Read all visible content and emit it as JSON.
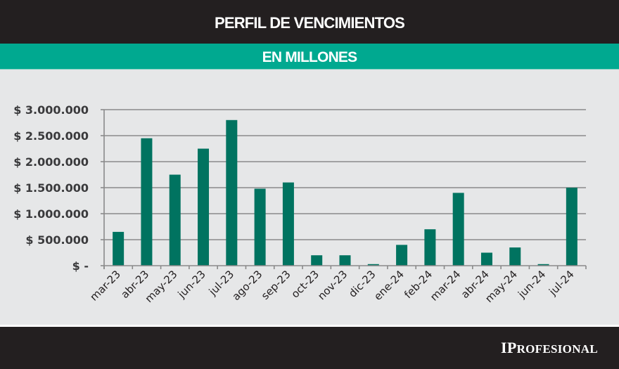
{
  "header": {
    "title": "PERFIL DE VENCIMIENTOS",
    "subtitle": "EN MILLONES"
  },
  "footer": {
    "logo_text": "IPROFESIONAL"
  },
  "colors": {
    "header_bg": "#231f20",
    "subheader_bg": "#00a990",
    "plot_bg": "#e6e7e8",
    "bar": "#007360",
    "grid": "#8a8a8a",
    "text": "#231f20"
  },
  "chart_data": {
    "type": "bar",
    "title": "PERFIL DE VENCIMIENTOS",
    "subtitle": "EN MILLONES",
    "xlabel": "",
    "ylabel": "",
    "categories": [
      "mar-23",
      "abr-23",
      "may-23",
      "jun-23",
      "jul-23",
      "ago-23",
      "sep-23",
      "oct-23",
      "nov-23",
      "dic-23",
      "ene-24",
      "feb-24",
      "mar-24",
      "abr-24",
      "may-24",
      "jun-24",
      "jul-24"
    ],
    "values": [
      650000,
      2450000,
      1750000,
      2250000,
      2800000,
      1480000,
      1600000,
      200000,
      200000,
      30000,
      400000,
      700000,
      1400000,
      250000,
      350000,
      30000,
      1500000
    ],
    "ylim": [
      0,
      3000000
    ],
    "yticks": [
      0,
      500000,
      1000000,
      1500000,
      2000000,
      2500000,
      3000000
    ],
    "ytick_labels": [
      "$ -",
      "$ 500.000",
      "$ 1.000.000",
      "$ 1.500.000",
      "$ 2.000.000",
      "$ 2.500.000",
      "$ 3.000.000"
    ],
    "grid": true,
    "legend": "none"
  }
}
